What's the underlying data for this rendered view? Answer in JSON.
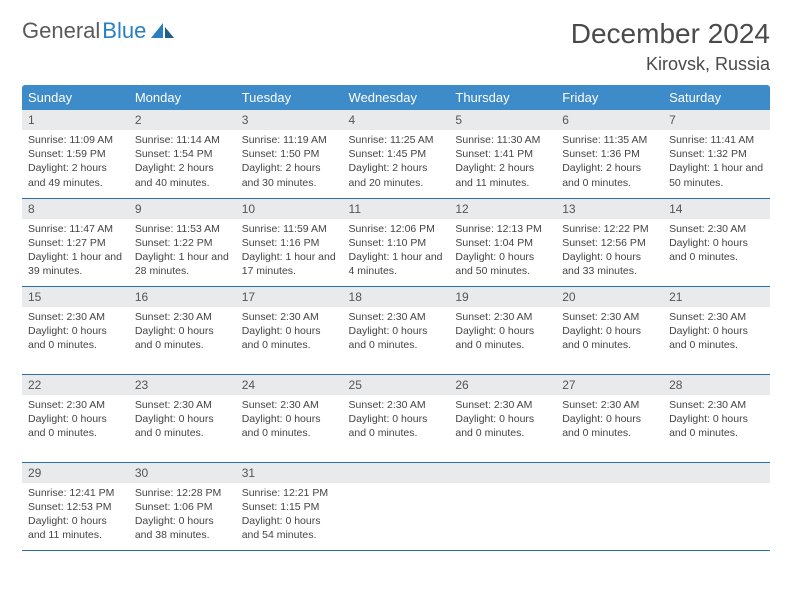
{
  "brand": {
    "name1": "General",
    "name2": "Blue",
    "text_color": "#5a5a5a",
    "accent_color": "#2a7fbf"
  },
  "title": "December 2024",
  "location": "Kirovsk, Russia",
  "colors": {
    "header_bg": "#3d8bc9",
    "header_text": "#ffffff",
    "daynum_bg": "#e9eaeb",
    "border": "#2a6ea8"
  },
  "weekdays": [
    "Sunday",
    "Monday",
    "Tuesday",
    "Wednesday",
    "Thursday",
    "Friday",
    "Saturday"
  ],
  "weeks": [
    [
      {
        "n": "1",
        "lines": [
          "Sunrise: 11:09 AM",
          "Sunset: 1:59 PM",
          "Daylight: 2 hours and 49 minutes."
        ]
      },
      {
        "n": "2",
        "lines": [
          "Sunrise: 11:14 AM",
          "Sunset: 1:54 PM",
          "Daylight: 2 hours and 40 minutes."
        ]
      },
      {
        "n": "3",
        "lines": [
          "Sunrise: 11:19 AM",
          "Sunset: 1:50 PM",
          "Daylight: 2 hours and 30 minutes."
        ]
      },
      {
        "n": "4",
        "lines": [
          "Sunrise: 11:25 AM",
          "Sunset: 1:45 PM",
          "Daylight: 2 hours and 20 minutes."
        ]
      },
      {
        "n": "5",
        "lines": [
          "Sunrise: 11:30 AM",
          "Sunset: 1:41 PM",
          "Daylight: 2 hours and 11 minutes."
        ]
      },
      {
        "n": "6",
        "lines": [
          "Sunrise: 11:35 AM",
          "Sunset: 1:36 PM",
          "Daylight: 2 hours and 0 minutes."
        ]
      },
      {
        "n": "7",
        "lines": [
          "Sunrise: 11:41 AM",
          "Sunset: 1:32 PM",
          "Daylight: 1 hour and 50 minutes."
        ]
      }
    ],
    [
      {
        "n": "8",
        "lines": [
          "Sunrise: 11:47 AM",
          "Sunset: 1:27 PM",
          "Daylight: 1 hour and 39 minutes."
        ]
      },
      {
        "n": "9",
        "lines": [
          "Sunrise: 11:53 AM",
          "Sunset: 1:22 PM",
          "Daylight: 1 hour and 28 minutes."
        ]
      },
      {
        "n": "10",
        "lines": [
          "Sunrise: 11:59 AM",
          "Sunset: 1:16 PM",
          "Daylight: 1 hour and 17 minutes."
        ]
      },
      {
        "n": "11",
        "lines": [
          "Sunrise: 12:06 PM",
          "Sunset: 1:10 PM",
          "Daylight: 1 hour and 4 minutes."
        ]
      },
      {
        "n": "12",
        "lines": [
          "Sunrise: 12:13 PM",
          "Sunset: 1:04 PM",
          "Daylight: 0 hours and 50 minutes."
        ]
      },
      {
        "n": "13",
        "lines": [
          "Sunrise: 12:22 PM",
          "Sunset: 12:56 PM",
          "Daylight: 0 hours and 33 minutes."
        ]
      },
      {
        "n": "14",
        "lines": [
          "",
          "Sunset: 2:30 AM",
          "Daylight: 0 hours and 0 minutes."
        ]
      }
    ],
    [
      {
        "n": "15",
        "lines": [
          "",
          "Sunset: 2:30 AM",
          "Daylight: 0 hours and 0 minutes."
        ]
      },
      {
        "n": "16",
        "lines": [
          "",
          "Sunset: 2:30 AM",
          "Daylight: 0 hours and 0 minutes."
        ]
      },
      {
        "n": "17",
        "lines": [
          "",
          "Sunset: 2:30 AM",
          "Daylight: 0 hours and 0 minutes."
        ]
      },
      {
        "n": "18",
        "lines": [
          "",
          "Sunset: 2:30 AM",
          "Daylight: 0 hours and 0 minutes."
        ]
      },
      {
        "n": "19",
        "lines": [
          "",
          "Sunset: 2:30 AM",
          "Daylight: 0 hours and 0 minutes."
        ]
      },
      {
        "n": "20",
        "lines": [
          "",
          "Sunset: 2:30 AM",
          "Daylight: 0 hours and 0 minutes."
        ]
      },
      {
        "n": "21",
        "lines": [
          "",
          "Sunset: 2:30 AM",
          "Daylight: 0 hours and 0 minutes."
        ]
      }
    ],
    [
      {
        "n": "22",
        "lines": [
          "",
          "Sunset: 2:30 AM",
          "Daylight: 0 hours and 0 minutes."
        ]
      },
      {
        "n": "23",
        "lines": [
          "",
          "Sunset: 2:30 AM",
          "Daylight: 0 hours and 0 minutes."
        ]
      },
      {
        "n": "24",
        "lines": [
          "",
          "Sunset: 2:30 AM",
          "Daylight: 0 hours and 0 minutes."
        ]
      },
      {
        "n": "25",
        "lines": [
          "",
          "Sunset: 2:30 AM",
          "Daylight: 0 hours and 0 minutes."
        ]
      },
      {
        "n": "26",
        "lines": [
          "",
          "Sunset: 2:30 AM",
          "Daylight: 0 hours and 0 minutes."
        ]
      },
      {
        "n": "27",
        "lines": [
          "",
          "Sunset: 2:30 AM",
          "Daylight: 0 hours and 0 minutes."
        ]
      },
      {
        "n": "28",
        "lines": [
          "",
          "Sunset: 2:30 AM",
          "Daylight: 0 hours and 0 minutes."
        ]
      }
    ],
    [
      {
        "n": "29",
        "lines": [
          "Sunrise: 12:41 PM",
          "Sunset: 12:53 PM",
          "Daylight: 0 hours and 11 minutes."
        ]
      },
      {
        "n": "30",
        "lines": [
          "Sunrise: 12:28 PM",
          "Sunset: 1:06 PM",
          "Daylight: 0 hours and 38 minutes."
        ]
      },
      {
        "n": "31",
        "lines": [
          "Sunrise: 12:21 PM",
          "Sunset: 1:15 PM",
          "Daylight: 0 hours and 54 minutes."
        ]
      },
      {
        "n": "",
        "lines": []
      },
      {
        "n": "",
        "lines": []
      },
      {
        "n": "",
        "lines": []
      },
      {
        "n": "",
        "lines": []
      }
    ]
  ]
}
